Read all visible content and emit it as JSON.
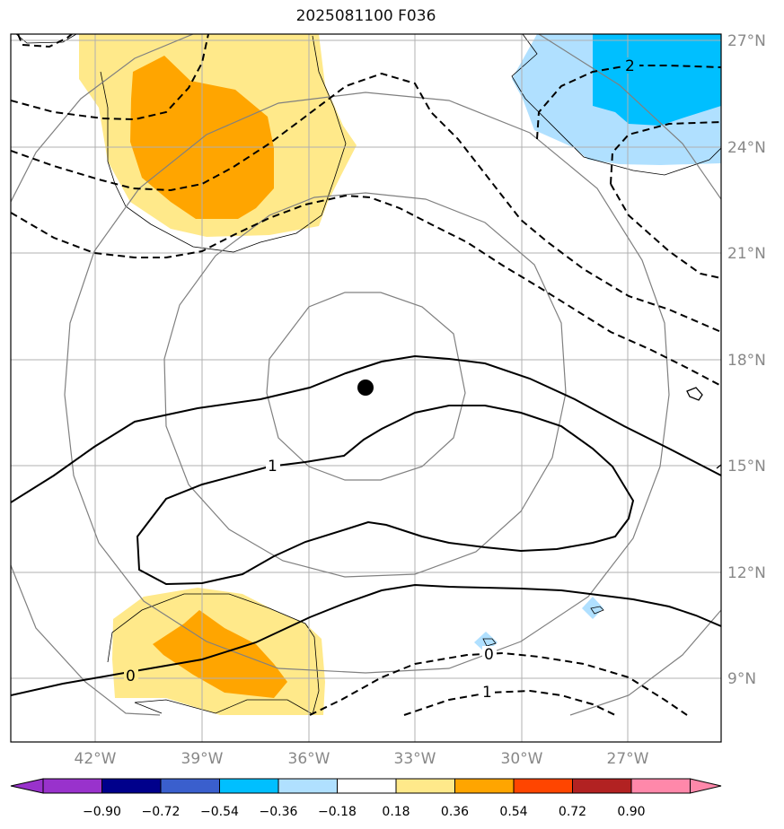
{
  "title": "2025081100 F036",
  "lon_labels": [
    "42°W",
    "39°W",
    "36°W",
    "33°W",
    "30°W",
    "27°W"
  ],
  "lat_labels": [
    "27°N",
    "24°N",
    "21°N",
    "18°N",
    "15°N",
    "12°N",
    "9°N"
  ],
  "contour_labels": [
    "2",
    "1",
    "0",
    "0",
    "1"
  ],
  "colorbar": {
    "ticks": [
      "−0.90",
      "−0.72",
      "−0.54",
      "−0.36",
      "−0.18",
      "0.18",
      "0.36",
      "0.54",
      "0.72",
      "0.90"
    ],
    "colors": [
      "#9932cc",
      "#00008b",
      "#3a5fcd",
      "#00bfff",
      "#b0e0ff",
      "#ffffff",
      "#ffe98a",
      "#ffa500",
      "#ff4500",
      "#b22222",
      "#ff88aa"
    ]
  },
  "colors": {
    "fill_light_yellow": "#ffe98a",
    "fill_orange": "#ffa500",
    "fill_light_blue": "#b0e0ff",
    "fill_blue": "#00bfff",
    "gridline": "#b0b0b0",
    "range_ring": "#808080",
    "contour": "#000000"
  },
  "storm_marker": "storm-center-dot"
}
